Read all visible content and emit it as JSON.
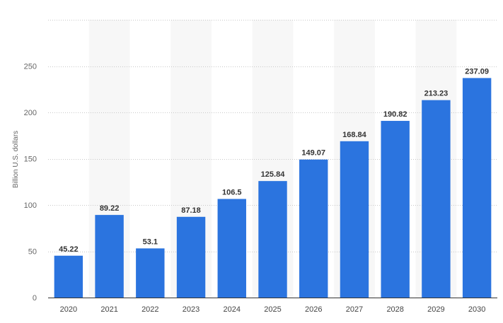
{
  "chart_data": {
    "type": "bar",
    "title": "",
    "xlabel": "",
    "ylabel": "Billion U.S. dollars",
    "categories": [
      "2020",
      "2021",
      "2022",
      "2023",
      "2024",
      "2025",
      "2026",
      "2027",
      "2028",
      "2029",
      "2030"
    ],
    "values": [
      45.22,
      89.22,
      53.1,
      87.18,
      106.5,
      125.84,
      149.07,
      168.84,
      190.82,
      213.23,
      237.09
    ],
    "value_labels": [
      "45.22",
      "89.22",
      "53.1",
      "87.18",
      "106.5",
      "125.84",
      "149.07",
      "168.84",
      "190.82",
      "213.23",
      "237.09"
    ],
    "ylim": [
      0,
      300
    ],
    "yticks": [
      0,
      50,
      100,
      150,
      200,
      250
    ],
    "ytick_labels": [
      "0",
      "50",
      "100",
      "150",
      "200",
      "250"
    ],
    "grid": true,
    "legend": "none",
    "colors": {
      "bar": "#2b74df",
      "band": "#f7f7f7",
      "grid": "#c8c8c8",
      "axis": "#333333"
    }
  }
}
